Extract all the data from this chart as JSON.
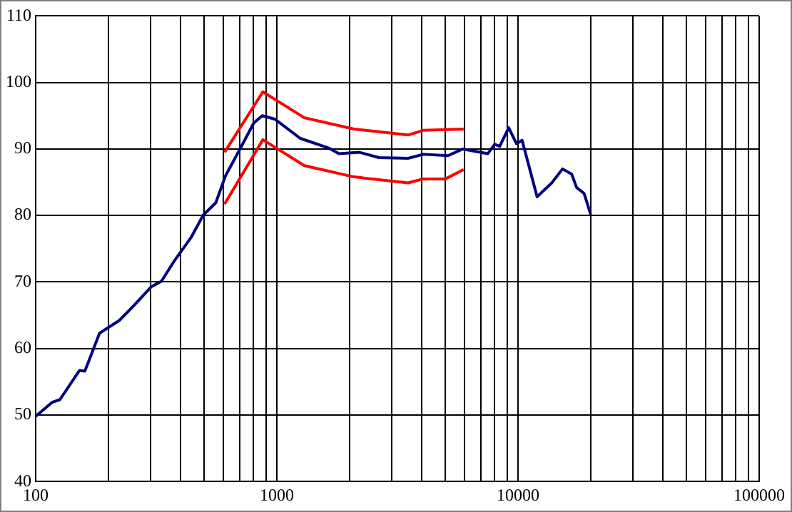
{
  "chart_data": {
    "type": "line",
    "log": "x",
    "grid": true,
    "legend": false,
    "marker": "none",
    "line_style": "solid",
    "xlim": [
      100,
      100000
    ],
    "ylim": [
      40,
      110
    ],
    "xticks": [
      100,
      {
        "value": 200,
        "label": null
      },
      {
        "value": 300,
        "label": null
      },
      {
        "value": 400,
        "label": null
      },
      {
        "value": 500,
        "label": null
      },
      {
        "value": 600,
        "label": null
      },
      {
        "value": 700,
        "label": null
      },
      {
        "value": 800,
        "label": null
      },
      {
        "value": 900,
        "label": null
      },
      1000,
      {
        "value": 2000,
        "label": null
      },
      {
        "value": 3000,
        "label": null
      },
      {
        "value": 4000,
        "label": null
      },
      {
        "value": 5000,
        "label": null
      },
      {
        "value": 6000,
        "label": null
      },
      {
        "value": 7000,
        "label": null
      },
      {
        "value": 8000,
        "label": null
      },
      {
        "value": 9000,
        "label": null
      },
      10000,
      {
        "value": 20000,
        "label": null
      },
      {
        "value": 30000,
        "label": null
      },
      {
        "value": 40000,
        "label": null
      },
      {
        "value": 50000,
        "label": null
      },
      {
        "value": 60000,
        "label": null
      },
      {
        "value": 70000,
        "label": null
      },
      {
        "value": 80000,
        "label": null
      },
      {
        "value": 90000,
        "label": null
      },
      100000
    ],
    "yticks": [
      40,
      50,
      60,
      70,
      80,
      90,
      100,
      110
    ],
    "series": [
      {
        "color": "#000080",
        "x": [
          100,
          117,
          126,
          152,
          160,
          184,
          222,
          256,
          302,
          332,
          373,
          441,
          496,
          558,
          613,
          706,
          802,
          870,
          980,
          1250,
          1650,
          1810,
          2200,
          2650,
          3500,
          4050,
          5130,
          5900,
          7500,
          8000,
          8400,
          9150,
          9850,
          10400,
          12000,
          13800,
          15300,
          16700,
          17500,
          18800,
          20000
        ],
        "values": [
          49.8,
          51.9,
          52.3,
          56.7,
          56.6,
          62.3,
          64.2,
          66.5,
          69.3,
          70.1,
          73,
          76.7,
          80.1,
          81.9,
          86,
          90.1,
          93.9,
          95,
          94.5,
          91.6,
          90.1,
          89.3,
          89.5,
          88.7,
          88.6,
          89.2,
          89,
          90,
          89.3,
          90.7,
          90.4,
          93.2,
          90.8,
          91.3,
          82.8,
          84.9,
          87,
          86.2,
          84.2,
          83.3,
          80.2
        ]
      },
      {
        "color": "#ff0000",
        "x": [
          607,
          875,
          1300,
          2090,
          3500,
          4040,
          5950
        ],
        "values": [
          89.5,
          98.6,
          94.7,
          93,
          92.1,
          92.8,
          93
        ]
      },
      {
        "color": "#ff0000",
        "x": [
          607,
          875,
          1300,
          2090,
          3500,
          4040,
          5000,
          5950
        ],
        "values": [
          81.7,
          91.4,
          87.5,
          85.8,
          84.9,
          85.5,
          85.5,
          86.9
        ]
      }
    ]
  }
}
